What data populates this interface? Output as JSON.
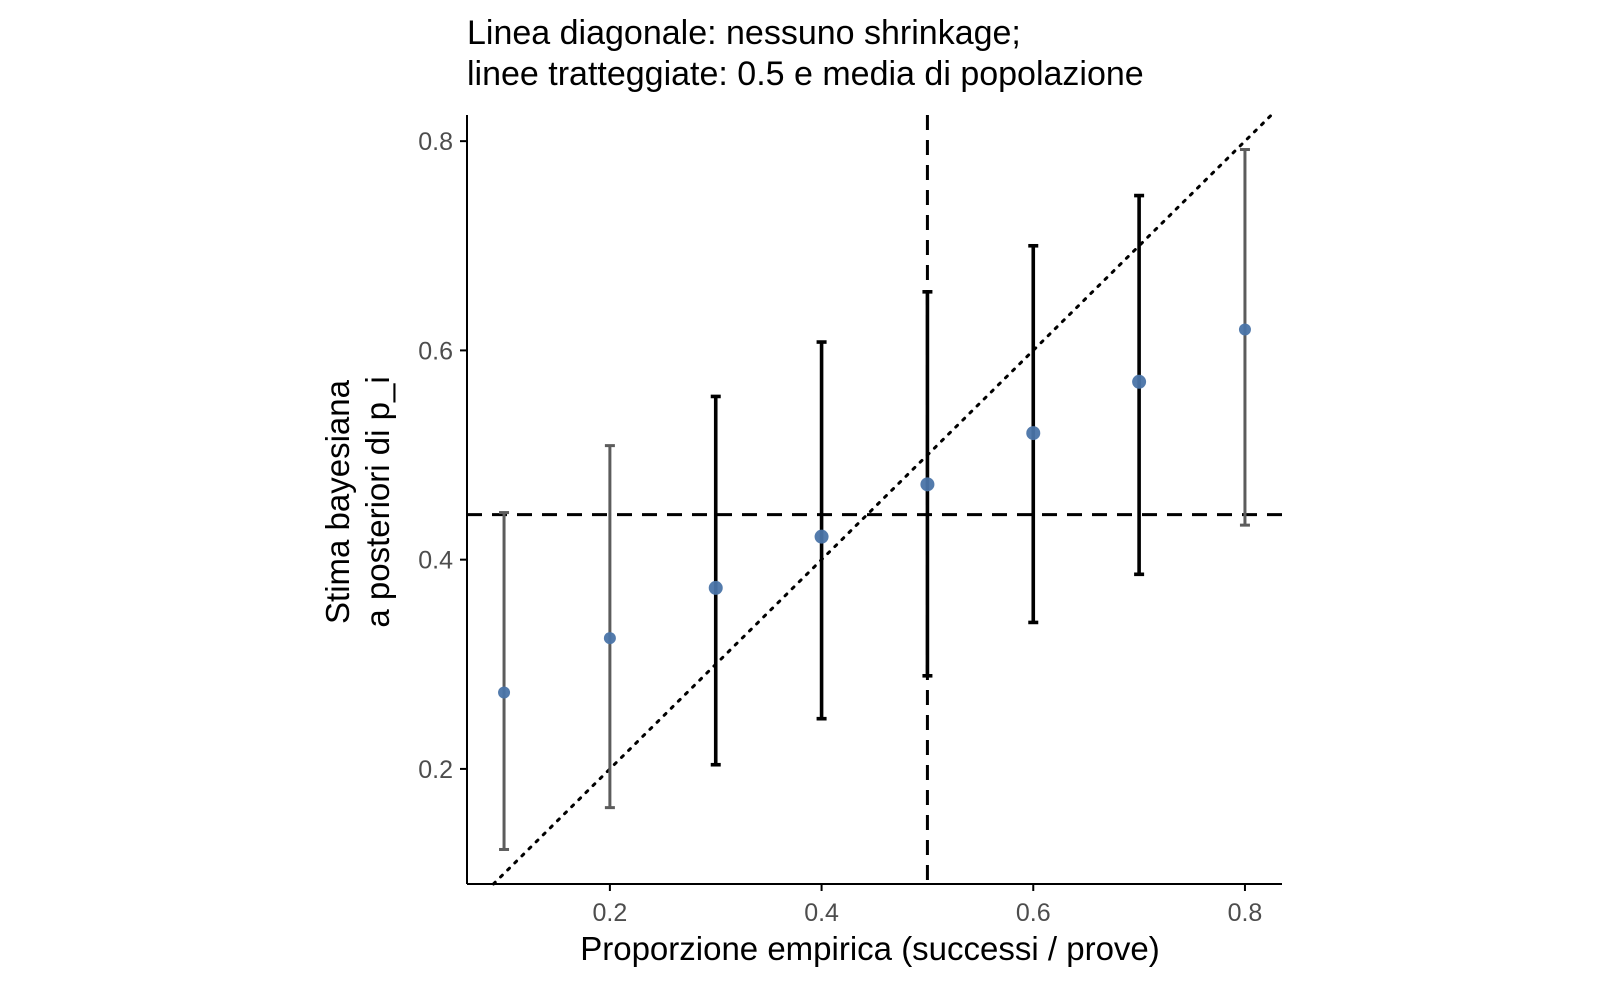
{
  "chart_data": {
    "type": "scatter",
    "title_lines": [
      "Linea diagonale: nessuno shrinkage;",
      "linee tratteggiate: 0.5 e media di popolazione"
    ],
    "xlabel": "Proporzione empirica (successi / prove)",
    "ylabel_lines": [
      "Stima bayesiana",
      "a posteriori di p_i"
    ],
    "xlim": [
      0.065,
      0.835
    ],
    "ylim": [
      0.09,
      0.825
    ],
    "x_ticks": [
      0.2,
      0.4,
      0.6,
      0.8
    ],
    "x_tick_labels": [
      "0.2",
      "0.4",
      "0.6",
      "0.8"
    ],
    "y_ticks": [
      0.2,
      0.4,
      0.6,
      0.8
    ],
    "y_tick_labels": [
      "0.2",
      "0.4",
      "0.6",
      "0.8"
    ],
    "reference_lines": {
      "diagonal": "y = x (dotted)",
      "vertical_x": 0.5,
      "horizontal_y": 0.443
    },
    "points": [
      {
        "x": 0.1,
        "y": 0.273,
        "lower": 0.123,
        "upper": 0.445,
        "overlap": 1
      },
      {
        "x": 0.2,
        "y": 0.325,
        "lower": 0.163,
        "upper": 0.509,
        "overlap": 1
      },
      {
        "x": 0.3,
        "y": 0.373,
        "lower": 0.204,
        "upper": 0.556,
        "overlap": 3
      },
      {
        "x": 0.4,
        "y": 0.422,
        "lower": 0.248,
        "upper": 0.608,
        "overlap": 2
      },
      {
        "x": 0.5,
        "y": 0.472,
        "lower": 0.289,
        "upper": 0.656,
        "overlap": 3
      },
      {
        "x": 0.6,
        "y": 0.521,
        "lower": 0.34,
        "upper": 0.7,
        "overlap": 2
      },
      {
        "x": 0.7,
        "y": 0.57,
        "lower": 0.386,
        "upper": 0.748,
        "overlap": 2
      },
      {
        "x": 0.8,
        "y": 0.62,
        "lower": 0.433,
        "upper": 0.792,
        "overlap": 1
      }
    ],
    "colors": {
      "point": "#4a74a8",
      "errorbar_single": "#5c5c5c",
      "errorbar_overlap": "#000000",
      "reference": "#000000",
      "axis": "#000000",
      "tick_label": "#4d4d4d"
    },
    "grid": false,
    "legend": "none"
  }
}
